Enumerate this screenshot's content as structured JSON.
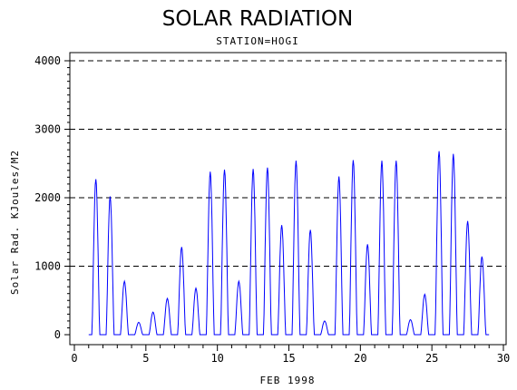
{
  "chart_data": {
    "type": "line",
    "title": "SOLAR RADIATION",
    "subtitle": "STATION=HOGI",
    "xlabel": "FEB 1998",
    "ylabel": "Solar Rad. KJoules/M2",
    "xlim": [
      0,
      30
    ],
    "ylim": [
      0,
      4000
    ],
    "x_ticks": [
      0,
      5,
      10,
      15,
      20,
      25,
      30
    ],
    "y_ticks": [
      0,
      1000,
      2000,
      3000,
      4000
    ],
    "grid": "horizontal dashed at 1000, 2000, 3000, 4000",
    "line_color": "#0000ff",
    "series": [
      {
        "daily_peaks": [
          {
            "day": 1,
            "peak": 2270
          },
          {
            "day": 2,
            "peak": 2020
          },
          {
            "day": 3,
            "peak": 780
          },
          {
            "day": 4,
            "peak": 180
          },
          {
            "day": 5,
            "peak": 330
          },
          {
            "day": 6,
            "peak": 530
          },
          {
            "day": 7,
            "peak": 1280
          },
          {
            "day": 8,
            "peak": 680
          },
          {
            "day": 9,
            "peak": 2380
          },
          {
            "day": 10,
            "peak": 2410
          },
          {
            "day": 11,
            "peak": 780
          },
          {
            "day": 12,
            "peak": 2420
          },
          {
            "day": 13,
            "peak": 2440
          },
          {
            "day": 14,
            "peak": 1600
          },
          {
            "day": 15,
            "peak": 2540
          },
          {
            "day": 16,
            "peak": 1530
          },
          {
            "day": 17,
            "peak": 200
          },
          {
            "day": 18,
            "peak": 2310
          },
          {
            "day": 19,
            "peak": 2550
          },
          {
            "day": 20,
            "peak": 1320
          },
          {
            "day": 21,
            "peak": 2540
          },
          {
            "day": 22,
            "peak": 2540
          },
          {
            "day": 23,
            "peak": 220
          },
          {
            "day": 24,
            "peak": 590
          },
          {
            "day": 25,
            "peak": 2680
          },
          {
            "day": 26,
            "peak": 2640
          },
          {
            "day": 27,
            "peak": 1660
          },
          {
            "day": 28,
            "peak": 1140
          }
        ]
      }
    ]
  }
}
